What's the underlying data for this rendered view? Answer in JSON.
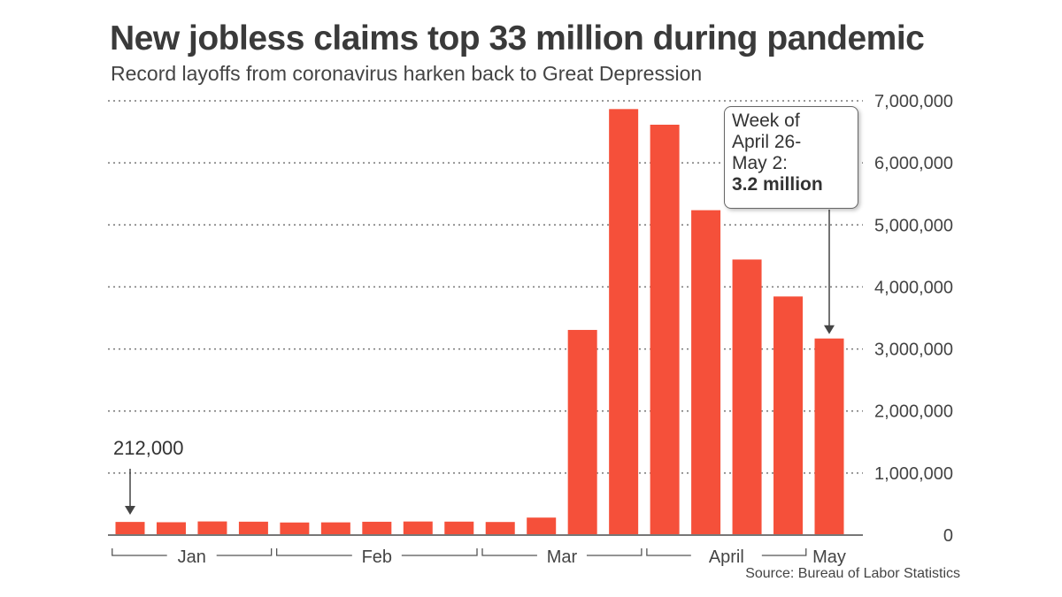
{
  "chart_data": {
    "type": "bar",
    "title": "New jobless claims top 33 million during pandemic",
    "subtitle": "Record layoffs from coronavirus harken back to Great Depression",
    "source": "Source: Bureau of Labor Statistics",
    "values": [
      212000,
      207000,
      220000,
      216000,
      203000,
      205000,
      215000,
      219000,
      217000,
      211000,
      282000,
      3307000,
      6867000,
      6615000,
      5237000,
      4442000,
      3846000,
      3169000
    ],
    "month_groups": [
      {
        "label": "Jan",
        "count": 4
      },
      {
        "label": "Feb",
        "count": 5
      },
      {
        "label": "Mar",
        "count": 4
      },
      {
        "label": "April",
        "count": 4
      },
      {
        "label": "May",
        "count": 1
      }
    ],
    "ylim": [
      0,
      7000000
    ],
    "y_ticks": [
      "0",
      "1,000,000",
      "2,000,000",
      "3,000,000",
      "4,000,000",
      "5,000,000",
      "6,000,000",
      "7,000,000"
    ],
    "y_axis_side": "right",
    "grid": "dotted horizontal",
    "bar_color": "#f5503a",
    "annotations": {
      "first": "212,000",
      "last_lines": [
        "Week of",
        "April 26-",
        "May 2:"
      ],
      "last_value": "3.2 million"
    }
  }
}
